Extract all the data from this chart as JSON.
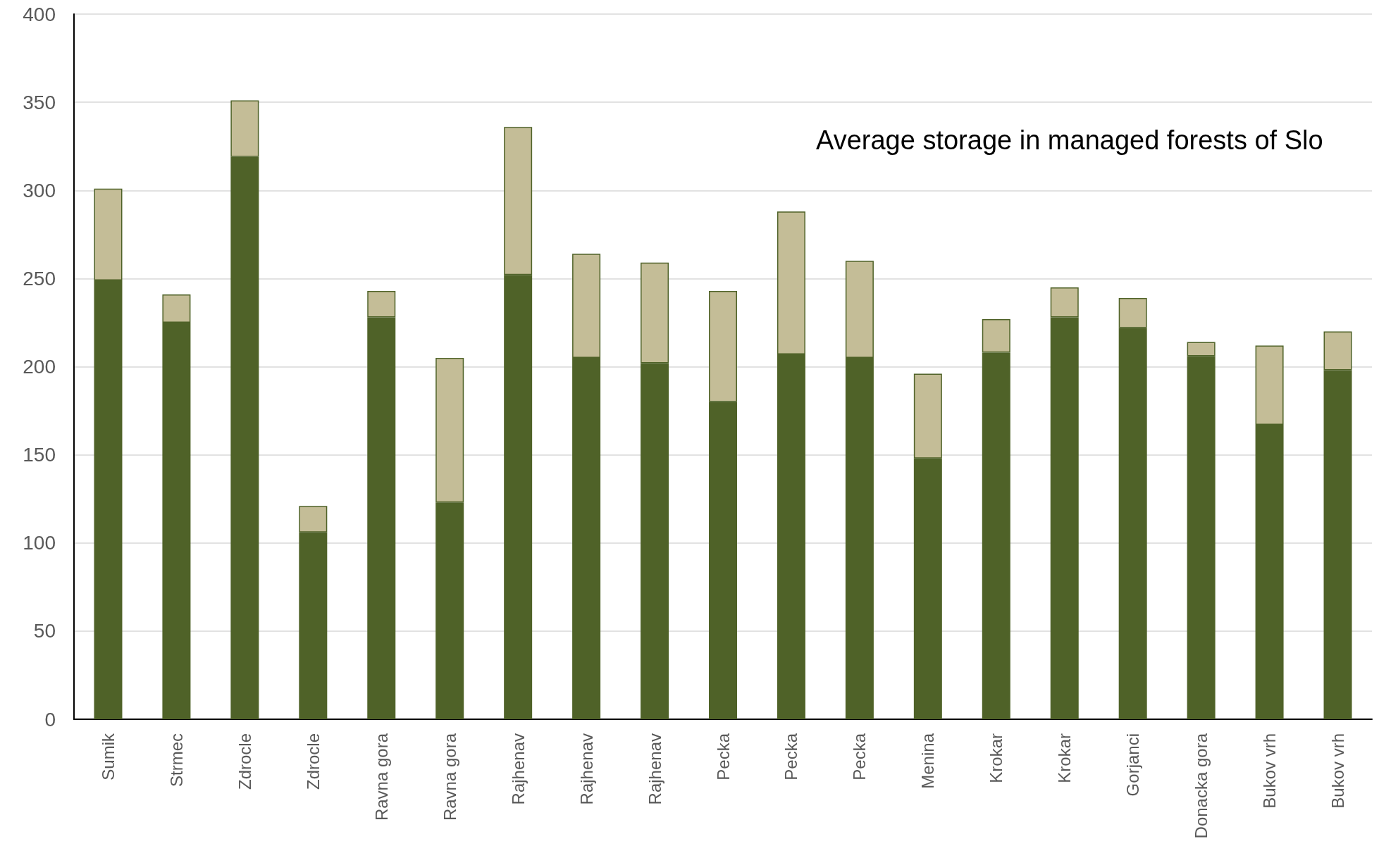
{
  "chart_data": {
    "type": "bar",
    "stacked": true,
    "grid": true,
    "annotations": [
      "Average storage in managed forests of Slo"
    ],
    "categories": [
      "Sumik",
      "Strmec",
      "Zdrocle",
      "Zdrocle",
      "Ravna gora",
      "Ravna gora",
      "Rajhenav",
      "Rajhenav",
      "Rajhenav",
      "Pecka",
      "Pecka",
      "Pecka",
      "Menina",
      "Krokar",
      "Krokar",
      "Gorjanci",
      "Donacka gora",
      "Bukov vrh",
      "Bukov vrh"
    ],
    "series": [
      {
        "color": "#4f6228",
        "values": [
          249,
          225,
          319,
          106,
          228,
          123,
          252,
          205,
          202,
          180,
          207,
          205,
          148,
          208,
          228,
          222,
          206,
          167,
          198
        ]
      },
      {
        "color": "#c4bd97",
        "values": [
          52,
          16,
          32,
          15,
          15,
          82,
          84,
          59,
          57,
          63,
          81,
          55,
          48,
          19,
          17,
          17,
          8,
          45,
          22
        ]
      }
    ],
    "ylim": [
      0,
      400
    ],
    "yticks": [
      0,
      50,
      100,
      150,
      200,
      250,
      300,
      350,
      400
    ]
  }
}
